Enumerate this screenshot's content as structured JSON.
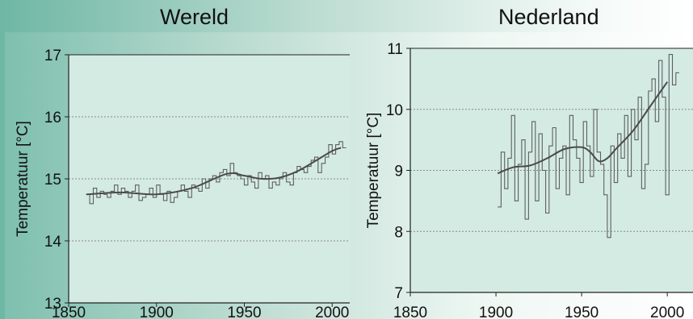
{
  "panels": {
    "left_title": "Wereld",
    "right_title": "Nederland"
  },
  "colors": {
    "plot_bg": "#d4ebe4",
    "line": "#5f5f5f",
    "grid": "#888888"
  },
  "chart_data": [
    {
      "type": "line",
      "title": "Wereld",
      "xlabel": "",
      "ylabel": "Temperatuur [°C]",
      "xlim": [
        1850,
        2010
      ],
      "ylim": [
        13,
        17
      ],
      "xticks": [
        1850,
        1900,
        1950,
        2000
      ],
      "yticks": [
        13,
        14,
        15,
        16,
        17
      ],
      "grid": "horizontal dotted",
      "series": [
        {
          "style": "step",
          "x": [
            1860,
            1862,
            1864,
            1866,
            1868,
            1870,
            1872,
            1874,
            1876,
            1878,
            1880,
            1882,
            1884,
            1886,
            1888,
            1890,
            1892,
            1894,
            1896,
            1898,
            1900,
            1902,
            1904,
            1906,
            1908,
            1910,
            1912,
            1914,
            1916,
            1918,
            1920,
            1922,
            1924,
            1926,
            1928,
            1930,
            1932,
            1934,
            1936,
            1938,
            1940,
            1942,
            1944,
            1946,
            1948,
            1950,
            1952,
            1954,
            1956,
            1958,
            1960,
            1962,
            1964,
            1966,
            1968,
            1970,
            1972,
            1974,
            1976,
            1978,
            1980,
            1982,
            1984,
            1986,
            1988,
            1990,
            1992,
            1994,
            1996,
            1998,
            2000,
            2002,
            2004,
            2006
          ],
          "y": [
            14.75,
            14.6,
            14.85,
            14.7,
            14.8,
            14.75,
            14.7,
            14.8,
            14.9,
            14.75,
            14.85,
            14.8,
            14.7,
            14.8,
            14.9,
            14.65,
            14.7,
            14.75,
            14.85,
            14.7,
            14.9,
            14.75,
            14.65,
            14.8,
            14.62,
            14.7,
            14.8,
            14.9,
            14.8,
            14.7,
            14.9,
            14.85,
            14.8,
            15.0,
            14.85,
            15.0,
            15.05,
            14.95,
            15.1,
            15.15,
            15.05,
            15.25,
            15.1,
            15.05,
            15.0,
            14.9,
            15.05,
            14.95,
            14.85,
            15.1,
            15.0,
            15.05,
            14.85,
            14.95,
            14.9,
            15.0,
            15.1,
            14.95,
            14.9,
            15.1,
            15.2,
            15.15,
            15.1,
            15.2,
            15.3,
            15.35,
            15.1,
            15.25,
            15.35,
            15.55,
            15.4,
            15.55,
            15.6,
            15.5
          ]
        },
        {
          "style": "smooth",
          "x": [
            1860,
            1880,
            1900,
            1920,
            1940,
            1950,
            1960,
            1970,
            1980,
            1990,
            2000,
            2005
          ],
          "y": [
            14.75,
            14.78,
            14.75,
            14.85,
            15.08,
            15.05,
            15.0,
            15.02,
            15.12,
            15.28,
            15.45,
            15.5
          ]
        }
      ]
    },
    {
      "type": "line",
      "title": "Nederland",
      "xlabel": "",
      "ylabel": "Temperatuur [°C]",
      "xlim": [
        1850,
        2015
      ],
      "ylim": [
        7,
        11
      ],
      "xticks": [
        1850,
        1900,
        1950,
        2000
      ],
      "yticks": [
        7,
        8,
        9,
        10,
        11
      ],
      "grid": "horizontal dotted",
      "series": [
        {
          "style": "step",
          "x": [
            1901,
            1903,
            1905,
            1907,
            1909,
            1911,
            1913,
            1915,
            1917,
            1919,
            1921,
            1923,
            1925,
            1927,
            1929,
            1931,
            1933,
            1935,
            1937,
            1939,
            1941,
            1943,
            1945,
            1947,
            1949,
            1951,
            1953,
            1955,
            1957,
            1959,
            1961,
            1963,
            1965,
            1967,
            1969,
            1971,
            1973,
            1975,
            1977,
            1979,
            1981,
            1983,
            1985,
            1987,
            1989,
            1991,
            1993,
            1995,
            1997,
            1999,
            2001,
            2003,
            2005
          ],
          "y": [
            8.4,
            9.3,
            8.7,
            9.2,
            9.9,
            8.5,
            9.1,
            9.5,
            8.2,
            9.3,
            9.8,
            8.5,
            9.6,
            9.0,
            8.3,
            9.4,
            9.7,
            8.7,
            9.2,
            9.4,
            8.6,
            9.9,
            9.5,
            9.2,
            8.8,
            9.8,
            9.4,
            8.9,
            10.0,
            9.3,
            9.1,
            8.6,
            7.9,
            9.4,
            8.8,
            9.6,
            9.2,
            9.9,
            8.9,
            10.0,
            9.5,
            10.2,
            8.7,
            9.1,
            10.3,
            10.5,
            9.8,
            10.8,
            10.2,
            8.6,
            10.9,
            10.4,
            10.6
          ]
        },
        {
          "style": "smooth",
          "x": [
            1901,
            1910,
            1920,
            1930,
            1940,
            1950,
            1955,
            1960,
            1965,
            1970,
            1980,
            1990,
            2000
          ],
          "y": [
            8.95,
            9.05,
            9.08,
            9.2,
            9.35,
            9.38,
            9.3,
            9.15,
            9.2,
            9.35,
            9.65,
            10.05,
            10.45
          ]
        }
      ]
    }
  ]
}
